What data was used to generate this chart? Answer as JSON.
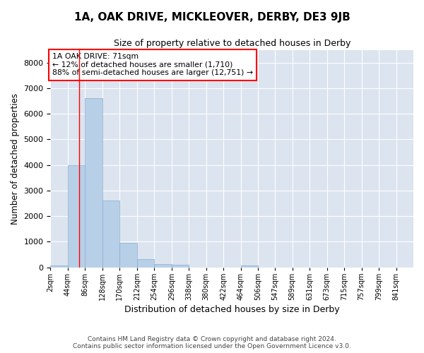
{
  "title": "1A, OAK DRIVE, MICKLEOVER, DERBY, DE3 9JB",
  "subtitle": "Size of property relative to detached houses in Derby",
  "xlabel": "Distribution of detached houses by size in Derby",
  "ylabel": "Number of detached properties",
  "bar_color": "#b8cfe8",
  "bar_edge_color": "#8aaecc",
  "background_color": "#dce4f0",
  "grid_color": "#ffffff",
  "bin_starts": [
    2,
    44,
    86,
    128,
    170,
    212,
    254,
    296,
    338,
    380,
    422,
    464,
    506,
    547,
    589,
    631,
    673,
    715,
    757,
    799,
    841
  ],
  "bin_labels": [
    "2sqm",
    "44sqm",
    "86sqm",
    "128sqm",
    "170sqm",
    "212sqm",
    "254sqm",
    "296sqm",
    "338sqm",
    "380sqm",
    "422sqm",
    "464sqm",
    "506sqm",
    "547sqm",
    "589sqm",
    "631sqm",
    "673sqm",
    "715sqm",
    "757sqm",
    "799sqm",
    "841sqm"
  ],
  "values": [
    80,
    4000,
    6600,
    2600,
    950,
    320,
    120,
    100,
    0,
    0,
    0,
    80,
    0,
    0,
    0,
    0,
    0,
    0,
    0,
    0,
    0
  ],
  "ylim": [
    0,
    8500
  ],
  "yticks": [
    0,
    1000,
    2000,
    3000,
    4000,
    5000,
    6000,
    7000,
    8000
  ],
  "annotation_text_line1": "1A OAK DRIVE: 71sqm",
  "annotation_text_line2": "← 12% of detached houses are smaller (1,710)",
  "annotation_text_line3": "88% of semi-detached houses are larger (12,751) →",
  "red_line_x": 71,
  "footer_line1": "Contains HM Land Registry data © Crown copyright and database right 2024.",
  "footer_line2": "Contains public sector information licensed under the Open Government Licence v3.0."
}
